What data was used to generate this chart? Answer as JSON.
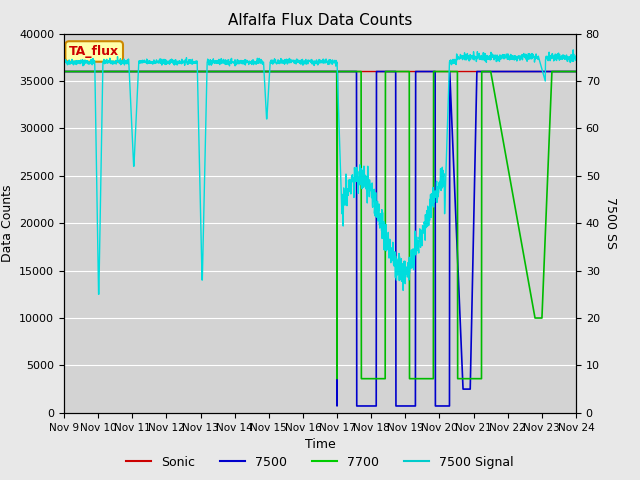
{
  "title": "Alfalfa Flux Data Counts",
  "xlabel": "Time",
  "ylabel_left": "Data Counts",
  "ylabel_right": "7500 SS",
  "ylim_left": [
    0,
    40000
  ],
  "ylim_right": [
    0,
    80
  ],
  "background_color": "#e8e8e8",
  "plot_bg_color": "#d3d3d3",
  "legend_labels": [
    "Sonic",
    "7500",
    "7700",
    "7500 Signal"
  ],
  "legend_colors": [
    "#cc0000",
    "#0000cc",
    "#00cc00",
    "#00cccc"
  ],
  "annotation_text": "TA_flux",
  "annotation_color": "#cc0000",
  "annotation_bg": "#ffffaa",
  "annotation_border": "#cc8800",
  "x_tick_labels": [
    "Nov 9",
    "Nov 10",
    "Nov 11",
    "Nov 12",
    "Nov 13",
    "Nov 14",
    "Nov 15",
    "Nov 16",
    "Nov 17",
    "Nov 18",
    "Nov 19",
    "Nov 20",
    "Nov 21",
    "Nov 22",
    "Nov 23",
    "Nov 24"
  ],
  "sonic_color": "#cc0000",
  "c7500_color": "#0000cc",
  "c7700_color": "#00bb00",
  "signal_color": "#00dddd"
}
